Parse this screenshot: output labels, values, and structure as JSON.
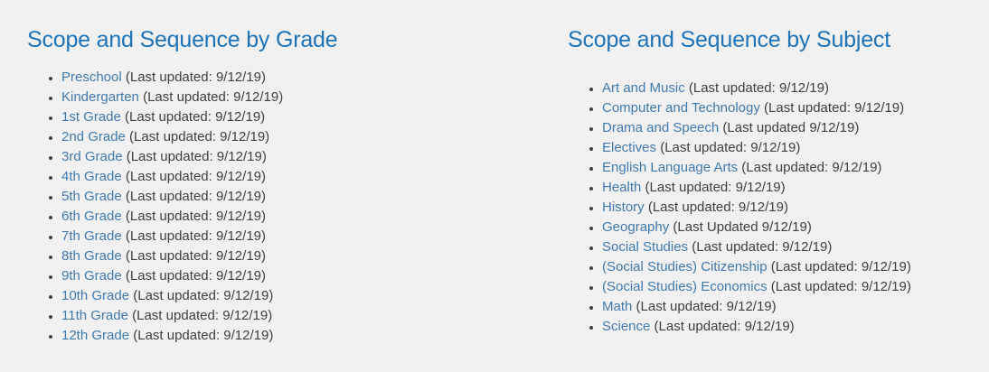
{
  "page": {
    "background": "#f1f1f1"
  },
  "colors": {
    "heading": "#1f73b7",
    "link": "#4279ad",
    "text": "#404043",
    "bullet": "#404043"
  },
  "sections": [
    {
      "title": "Scope and Sequence by Grade",
      "items": [
        {
          "link": "Preschool",
          "suffix": "(Last updated: 9/12/19)"
        },
        {
          "link": "Kindergarten",
          "suffix": "(Last updated: 9/12/19)"
        },
        {
          "link": "1st Grade",
          "suffix": "(Last updated: 9/12/19)"
        },
        {
          "link": "2nd Grade",
          "suffix": "(Last updated: 9/12/19)"
        },
        {
          "link": "3rd Grade",
          "suffix": "(Last updated: 9/12/19)"
        },
        {
          "link": "4th Grade",
          "suffix": "(Last updated: 9/12/19)"
        },
        {
          "link": "5th Grade",
          "suffix": "(Last updated: 9/12/19)"
        },
        {
          "link": "6th Grade",
          "suffix": "(Last updated: 9/12/19)"
        },
        {
          "link": "7th Grade",
          "suffix": "(Last updated: 9/12/19)"
        },
        {
          "link": "8th Grade",
          "suffix": "(Last updated: 9/12/19)"
        },
        {
          "link": "9th Grade",
          "suffix": "(Last updated: 9/12/19)"
        },
        {
          "link": "10th Grade",
          "suffix": "(Last updated: 9/12/19)"
        },
        {
          "link": "11th Grade",
          "suffix": "(Last updated: 9/12/19)"
        },
        {
          "link": "12th Grade",
          "suffix": "(Last updated: 9/12/19)"
        }
      ]
    },
    {
      "title": "Scope and Sequence by Subject",
      "items": [
        {
          "link": "Art and Music",
          "suffix": "(Last updated: 9/12/19)"
        },
        {
          "link": "Computer and Technology",
          "suffix": "(Last updated: 9/12/19)"
        },
        {
          "link": "Drama and Speech",
          "suffix": "(Last updated 9/12/19)"
        },
        {
          "link": "Electives",
          "suffix": "(Last updated: 9/12/19)"
        },
        {
          "link": "English Language Arts",
          "suffix": "(Last updated: 9/12/19)"
        },
        {
          "link": "Health",
          "suffix": "(Last updated: 9/12/19)"
        },
        {
          "link": "History",
          "suffix": "(Last updated: 9/12/19)"
        },
        {
          "link": "Geography",
          "suffix": "(Last Updated 9/12/19)"
        },
        {
          "link": "Social Studies",
          "suffix": "(Last updated: 9/12/19)"
        },
        {
          "link": "(Social Studies) Citizenship",
          "suffix": "(Last updated: 9/12/19)"
        },
        {
          "link": "(Social Studies) Economics",
          "suffix": "(Last updated: 9/12/19)"
        },
        {
          "link": "Math",
          "suffix": "(Last updated: 9/12/19)"
        },
        {
          "link": "Science",
          "suffix": "(Last updated: 9/12/19)"
        }
      ]
    }
  ]
}
